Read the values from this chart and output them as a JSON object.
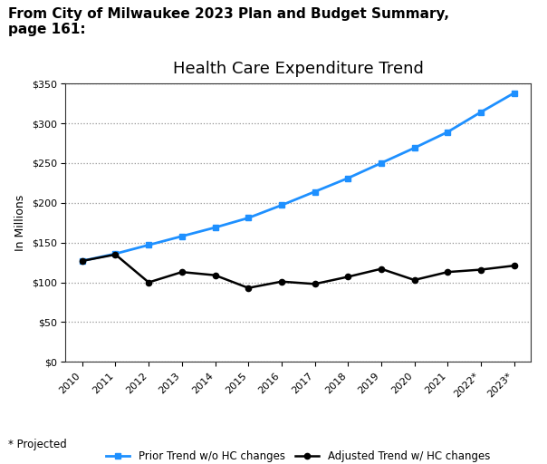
{
  "title": "Health Care Expenditure Trend",
  "ylabel": "In Millions",
  "header_text": "From City of Milwaukee 2023 Plan and Budget Summary,\npage 161:",
  "footnote": "* Projected",
  "years": [
    2010,
    2011,
    2012,
    2013,
    2014,
    2015,
    2016,
    2017,
    2018,
    2019,
    2020,
    2021,
    2022,
    2023
  ],
  "x_labels": [
    "2010",
    "2011",
    "2012",
    "2013",
    "2014",
    "2015",
    "2016",
    "2017",
    "2018",
    "2019",
    "2020",
    "2021",
    "2022*",
    "2023*"
  ],
  "adjusted_trend": [
    127,
    135,
    100,
    113,
    109,
    93,
    101,
    98,
    107,
    117,
    103,
    113,
    116,
    121
  ],
  "prior_trend": [
    127,
    136,
    147,
    158,
    169,
    181,
    197,
    214,
    231,
    250,
    269,
    289,
    314,
    338
  ],
  "adjusted_color": "#000000",
  "prior_color": "#1e90ff",
  "ylim": [
    0,
    350
  ],
  "yticks": [
    0,
    50,
    100,
    150,
    200,
    250,
    300,
    350
  ],
  "legend_adjusted": "Adjusted Trend w/ HC changes",
  "legend_prior": "Prior Trend w/o HC changes",
  "bg_color": "#ffffff",
  "plot_bg_color": "#ffffff",
  "title_fontsize": 13,
  "label_fontsize": 9,
  "tick_fontsize": 8,
  "header_fontsize": 11
}
